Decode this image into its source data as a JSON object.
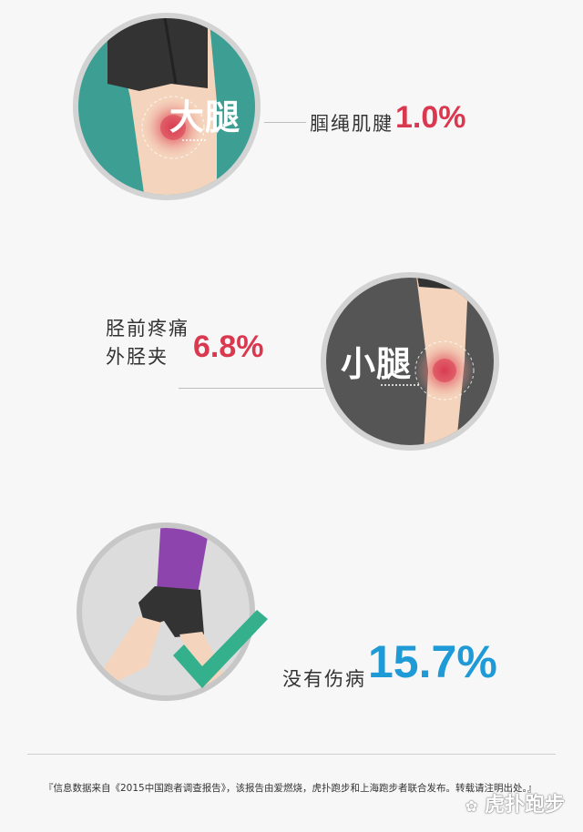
{
  "sections": [
    {
      "region_label": "大腿",
      "injury_name": "腘绳肌腱",
      "percentage": "1.0%",
      "circle_color": "#3d9f94"
    },
    {
      "region_label": "小腿",
      "injury_name_line1": "胫前疼痛",
      "injury_name_line2": "外胫夹",
      "percentage": "6.8%",
      "circle_color": "#555555"
    },
    {
      "status_label": "没有伤病",
      "percentage": "15.7%",
      "circle_color": "#c7c7c7",
      "check_color": "#34b08c"
    }
  ],
  "accent_colors": {
    "red": "#d9384f",
    "blue": "#1e9bd7"
  },
  "footer": {
    "source": "『信息数据来自《2015中国跑者调查报告》，该报告由爱燃烧，虎扑跑步和上海跑步者联合发布。转载请注明出处。』",
    "watermark": "虎扑跑步"
  }
}
